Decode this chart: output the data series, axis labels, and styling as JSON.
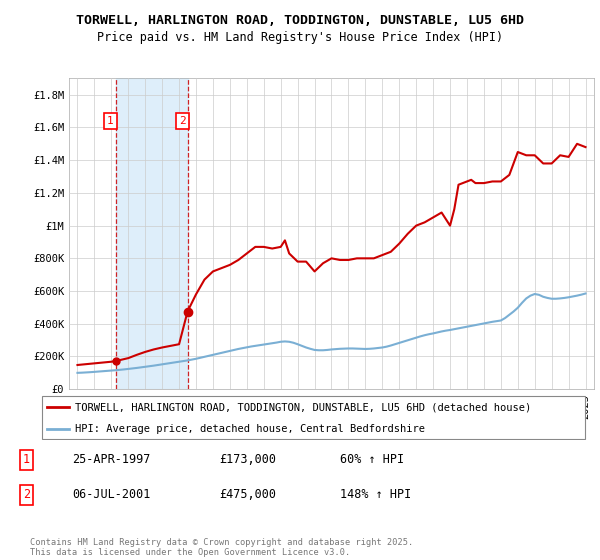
{
  "title": "TORWELL, HARLINGTON ROAD, TODDINGTON, DUNSTABLE, LU5 6HD",
  "subtitle": "Price paid vs. HM Land Registry's House Price Index (HPI)",
  "ylim": [
    0,
    1900000
  ],
  "xlim_start": 1994.5,
  "xlim_end": 2025.5,
  "yticks": [
    0,
    200000,
    400000,
    600000,
    800000,
    1000000,
    1200000,
    1400000,
    1600000,
    1800000
  ],
  "ytick_labels": [
    "£0",
    "£200K",
    "£400K",
    "£600K",
    "£800K",
    "£1M",
    "£1.2M",
    "£1.4M",
    "£1.6M",
    "£1.8M"
  ],
  "xticks": [
    1995,
    1996,
    1997,
    1998,
    1999,
    2000,
    2001,
    2002,
    2003,
    2004,
    2005,
    2006,
    2007,
    2008,
    2009,
    2010,
    2011,
    2012,
    2013,
    2014,
    2015,
    2016,
    2017,
    2018,
    2019,
    2020,
    2021,
    2022,
    2023,
    2024,
    2025
  ],
  "plot_bg_color": "#ffffff",
  "grid_color": "#cccccc",
  "span_color": "#d0e8f8",
  "red_line_color": "#cc0000",
  "blue_line_color": "#7aafd4",
  "marker1_date": 1997.3,
  "marker1_value": 173000,
  "marker2_date": 2001.5,
  "marker2_value": 475000,
  "hpi_years": [
    1995.0,
    1995.25,
    1995.5,
    1995.75,
    1996.0,
    1996.25,
    1996.5,
    1996.75,
    1997.0,
    1997.25,
    1997.5,
    1997.75,
    1998.0,
    1998.25,
    1998.5,
    1998.75,
    1999.0,
    1999.25,
    1999.5,
    1999.75,
    2000.0,
    2000.25,
    2000.5,
    2000.75,
    2001.0,
    2001.25,
    2001.5,
    2001.75,
    2002.0,
    2002.25,
    2002.5,
    2002.75,
    2003.0,
    2003.25,
    2003.5,
    2003.75,
    2004.0,
    2004.25,
    2004.5,
    2004.75,
    2005.0,
    2005.25,
    2005.5,
    2005.75,
    2006.0,
    2006.25,
    2006.5,
    2006.75,
    2007.0,
    2007.25,
    2007.5,
    2007.75,
    2008.0,
    2008.25,
    2008.5,
    2008.75,
    2009.0,
    2009.25,
    2009.5,
    2009.75,
    2010.0,
    2010.25,
    2010.5,
    2010.75,
    2011.0,
    2011.25,
    2011.5,
    2011.75,
    2012.0,
    2012.25,
    2012.5,
    2012.75,
    2013.0,
    2013.25,
    2013.5,
    2013.75,
    2014.0,
    2014.25,
    2014.5,
    2014.75,
    2015.0,
    2015.25,
    2015.5,
    2015.75,
    2016.0,
    2016.25,
    2016.5,
    2016.75,
    2017.0,
    2017.25,
    2017.5,
    2017.75,
    2018.0,
    2018.25,
    2018.5,
    2018.75,
    2019.0,
    2019.25,
    2019.5,
    2019.75,
    2020.0,
    2020.25,
    2020.5,
    2020.75,
    2021.0,
    2021.25,
    2021.5,
    2021.75,
    2022.0,
    2022.25,
    2022.5,
    2022.75,
    2023.0,
    2023.25,
    2023.5,
    2023.75,
    2024.0,
    2024.25,
    2024.5,
    2024.75,
    2025.0
  ],
  "hpi_values": [
    100000,
    101000,
    102500,
    104000,
    106000,
    108000,
    110000,
    112000,
    114000,
    116000,
    118500,
    121000,
    124000,
    127000,
    130000,
    133500,
    137000,
    140500,
    144000,
    148000,
    152000,
    156000,
    160000,
    164000,
    168000,
    172000,
    176000,
    181000,
    186000,
    192000,
    198000,
    204000,
    210000,
    216000,
    222000,
    228000,
    234000,
    240000,
    246000,
    251000,
    256000,
    261000,
    265000,
    269000,
    273000,
    277000,
    281000,
    285000,
    290000,
    292000,
    290000,
    284000,
    275000,
    265000,
    255000,
    247000,
    240000,
    238000,
    238000,
    240000,
    243000,
    245000,
    247000,
    248000,
    249000,
    249000,
    248000,
    247000,
    246000,
    247000,
    249000,
    252000,
    255000,
    260000,
    267000,
    275000,
    283000,
    291000,
    299000,
    307000,
    315000,
    323000,
    330000,
    336000,
    341000,
    347000,
    353000,
    358000,
    362000,
    367000,
    372000,
    377000,
    382000,
    387000,
    392000,
    397000,
    402000,
    407000,
    412000,
    416000,
    420000,
    435000,
    455000,
    475000,
    498000,
    528000,
    555000,
    572000,
    582000,
    577000,
    565000,
    558000,
    553000,
    553000,
    555000,
    558000,
    562000,
    567000,
    572000,
    578000,
    585000
  ],
  "house_years": [
    1995.0,
    1995.5,
    1996.0,
    1996.5,
    1997.0,
    1997.3,
    1998.0,
    1998.5,
    1999.0,
    1999.5,
    2000.0,
    2000.5,
    2001.0,
    2001.5,
    2002.0,
    2002.5,
    2003.0,
    2003.5,
    2004.0,
    2004.5,
    2005.0,
    2005.5,
    2006.0,
    2006.5,
    2007.0,
    2007.25,
    2007.5,
    2008.0,
    2008.5,
    2009.0,
    2009.5,
    2010.0,
    2010.5,
    2011.0,
    2011.5,
    2012.0,
    2012.5,
    2013.0,
    2013.5,
    2014.0,
    2014.5,
    2015.0,
    2015.5,
    2016.0,
    2016.5,
    2017.0,
    2017.25,
    2017.5,
    2018.0,
    2018.25,
    2018.5,
    2019.0,
    2019.5,
    2020.0,
    2020.5,
    2021.0,
    2021.5,
    2022.0,
    2022.5,
    2023.0,
    2023.5,
    2024.0,
    2024.5,
    2025.0
  ],
  "house_values": [
    148000,
    153000,
    158000,
    163000,
    168000,
    173000,
    190000,
    210000,
    228000,
    243000,
    255000,
    265000,
    275000,
    475000,
    580000,
    670000,
    720000,
    740000,
    760000,
    790000,
    830000,
    870000,
    870000,
    860000,
    870000,
    910000,
    830000,
    780000,
    780000,
    720000,
    770000,
    800000,
    790000,
    790000,
    800000,
    800000,
    800000,
    820000,
    840000,
    890000,
    950000,
    1000000,
    1020000,
    1050000,
    1080000,
    1000000,
    1100000,
    1250000,
    1270000,
    1280000,
    1260000,
    1260000,
    1270000,
    1270000,
    1310000,
    1450000,
    1430000,
    1430000,
    1380000,
    1380000,
    1430000,
    1420000,
    1500000,
    1480000
  ],
  "legend_line1": "TORWELL, HARLINGTON ROAD, TODDINGTON, DUNSTABLE, LU5 6HD (detached house)",
  "legend_line2": "HPI: Average price, detached house, Central Bedfordshire",
  "table_rows": [
    {
      "num": "1",
      "date": "25-APR-1997",
      "price": "£173,000",
      "hpi": "60% ↑ HPI"
    },
    {
      "num": "2",
      "date": "06-JUL-2001",
      "price": "£475,000",
      "hpi": "148% ↑ HPI"
    }
  ],
  "footer": "Contains HM Land Registry data © Crown copyright and database right 2025.\nThis data is licensed under the Open Government Licence v3.0.",
  "title_fontsize": 9.5,
  "subtitle_fontsize": 8.5,
  "tick_fontsize": 7.5,
  "legend_fontsize": 8
}
